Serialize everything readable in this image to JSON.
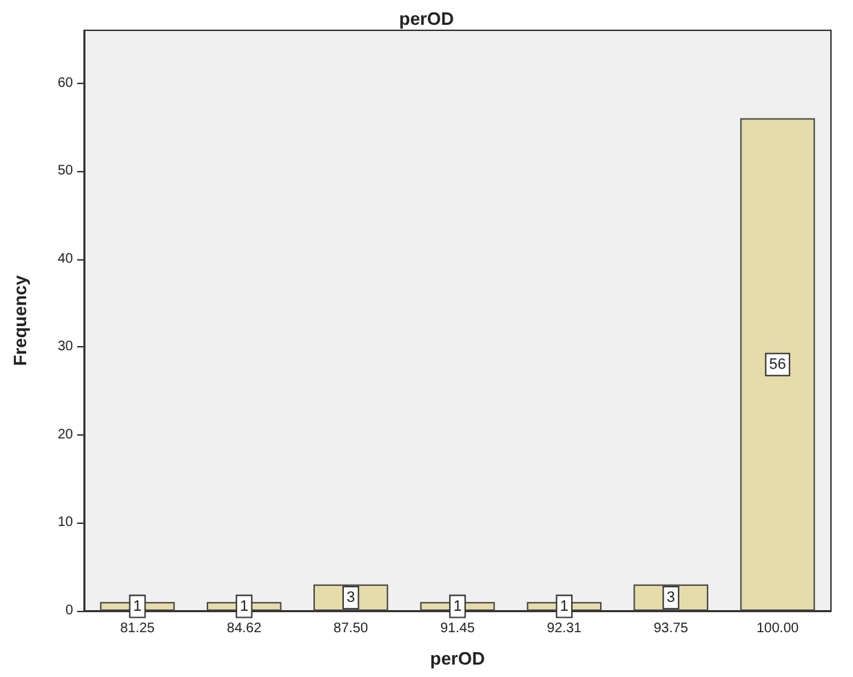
{
  "chart_data": {
    "type": "bar",
    "title": "perOD",
    "xlabel": "perOD",
    "ylabel": "Frequency",
    "categories": [
      "81.25",
      "84.62",
      "87.50",
      "91.45",
      "92.31",
      "93.75",
      "100.00"
    ],
    "values": [
      1,
      1,
      3,
      1,
      1,
      3,
      56
    ],
    "color": "#e6dcaa",
    "ylim": [
      0,
      66
    ],
    "yticks": [
      0,
      10,
      20,
      30,
      40,
      50,
      60
    ],
    "grid": false,
    "data_labels": true
  }
}
